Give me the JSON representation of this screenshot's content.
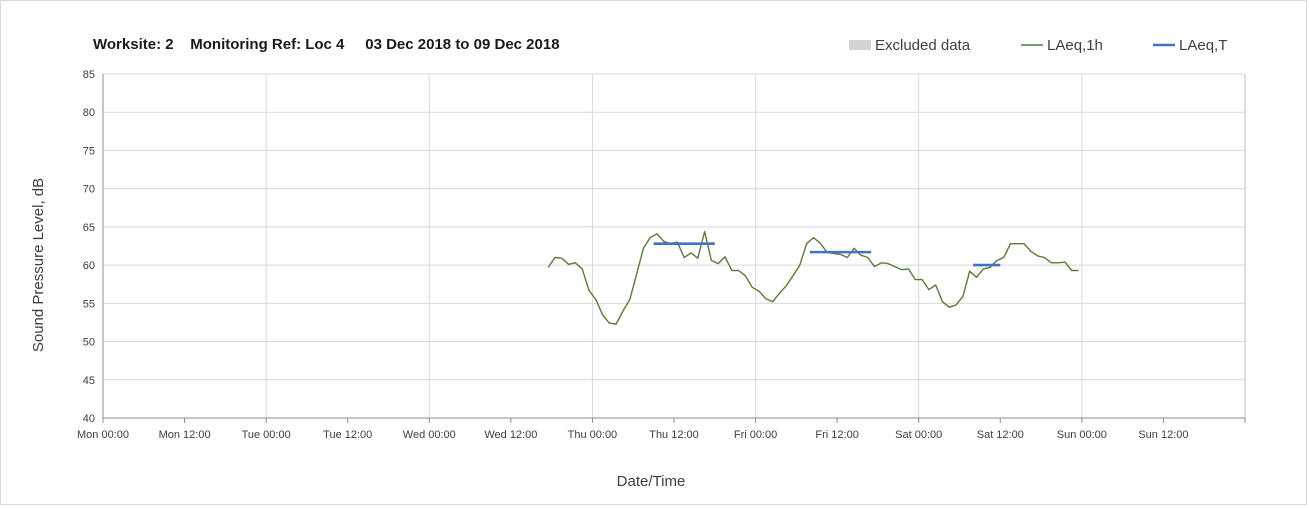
{
  "chart_data": {
    "type": "line",
    "title": "Worksite: 2    Monitoring Ref: Loc 4     03 Dec 2018 to 09 Dec 2018",
    "xlabel": "Date/Time",
    "ylabel": "Sound Pressure Level, dB",
    "ylim": [
      40,
      85
    ],
    "yticks": [
      "40",
      "45",
      "50",
      "55",
      "60",
      "65",
      "70",
      "75",
      "80",
      "85"
    ],
    "xlim": [
      0,
      168
    ],
    "xticks": [
      "Mon 00:00",
      "Mon 12:00",
      "Tue 00:00",
      "Tue 12:00",
      "Wed 00:00",
      "Wed 12:00",
      "Thu 00:00",
      "Thu 12:00",
      "Fri 00:00",
      "Fri 12:00",
      "Sat 00:00",
      "Sat 12:00",
      "Sun 00:00",
      "Sun 12:00"
    ],
    "grid": "vertical at 24h, horizontal at each tick",
    "legend": {
      "placement": "top-right",
      "entries": [
        {
          "name": "Excluded data",
          "kind": "area",
          "color": "#d3d3d3"
        },
        {
          "name": "LAeq,1h",
          "kind": "line",
          "color": "#5a7a3a"
        },
        {
          "name": "LAeq,T",
          "kind": "line",
          "color": "#4472c4"
        }
      ]
    },
    "series": [
      {
        "name": "LAeq,1h",
        "color": "#5a7a3a",
        "x": [
          65.5,
          66.5,
          67.5,
          68.5,
          69.5,
          70.5,
          71.5,
          72.5,
          73.5,
          74.5,
          75.5,
          76.5,
          77.5,
          78.5,
          79.5,
          80.5,
          81.5,
          82.5,
          83.5,
          84.5,
          85.5,
          86.5,
          87.5,
          88.5,
          89.5,
          90.5,
          91.5,
          92.5,
          93.5,
          94.5,
          95.5,
          96.5,
          97.5,
          98.5,
          99.5,
          100.5,
          101.5,
          102.5,
          103.5,
          104.5,
          105.5,
          106.5,
          107.5,
          108.5,
          109.5,
          110.5,
          111.5,
          112.5,
          113.5,
          114.5,
          115.5,
          116.5,
          117.5,
          118.5,
          119.5,
          120.5,
          121.5,
          122.5,
          123.5,
          124.5,
          125.5,
          126.5,
          127.5,
          128.5,
          129.5,
          130.5,
          131.5,
          132.5,
          133.5,
          134.5,
          135.5,
          136.5,
          137.5,
          138.5,
          139.5,
          140.5,
          141.5,
          142.5,
          143.5
        ],
        "y": [
          59.7,
          61.0,
          60.9,
          60.1,
          60.3,
          59.5,
          56.7,
          55.5,
          53.5,
          52.4,
          52.3,
          54.0,
          55.5,
          58.8,
          62.2,
          63.6,
          64.1,
          63.1,
          62.8,
          63.0,
          61.0,
          61.6,
          60.9,
          64.4,
          60.6,
          60.2,
          61.1,
          59.3,
          59.3,
          58.6,
          57.1,
          56.6,
          55.6,
          55.2,
          56.3,
          57.3,
          58.6,
          60.0,
          62.8,
          63.6,
          62.9,
          61.7,
          61.5,
          61.4,
          61.0,
          62.2,
          61.3,
          61.0,
          59.8,
          60.3,
          60.2,
          59.8,
          59.4,
          59.5,
          58.1,
          58.1,
          56.8,
          57.4,
          55.2,
          54.5,
          54.8,
          55.9,
          59.2,
          58.4,
          59.5,
          59.7,
          60.6,
          61.0,
          62.8,
          62.8,
          62.8,
          61.8,
          61.2,
          61.0,
          60.3,
          60.3,
          60.4,
          59.3,
          59.3
        ]
      },
      {
        "name": "LAeq,T",
        "color": "#4472c4",
        "segments": [
          {
            "x": [
              81,
              90
            ],
            "y": 62.8
          },
          {
            "x": [
              104,
              113
            ],
            "y": 61.7
          },
          {
            "x": [
              128,
              132
            ],
            "y": 60.0
          }
        ]
      }
    ]
  }
}
